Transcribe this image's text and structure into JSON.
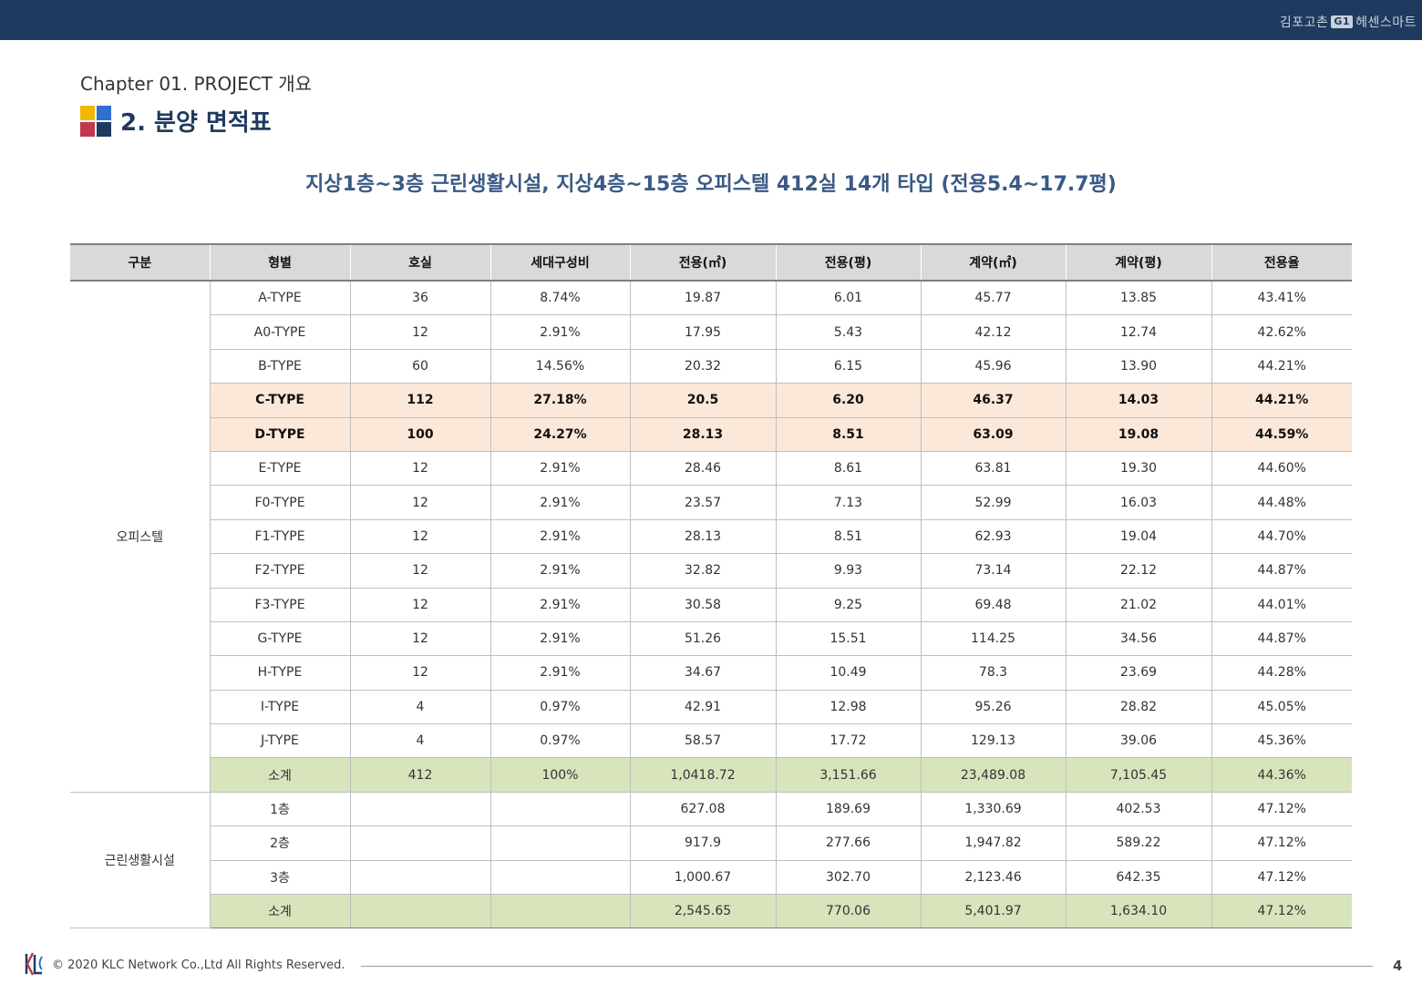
{
  "header": {
    "brand_left": "김포고촌",
    "brand_badge": "G1",
    "brand_right": "헤센스마트"
  },
  "chapter": "Chapter 01. PROJECT 개요",
  "section_title": "2. 분양 면적표",
  "subtitle": "지상1층~3층 근린생활시설, 지상4층~15층 오피스텔 412실 14개 타입 (전용5.4~17.7평)",
  "table": {
    "headers": [
      "구분",
      "형별",
      "호실",
      "세대구성비",
      "전용(㎡)",
      "전용(평)",
      "계약(㎡)",
      "계약(평)",
      "전용율"
    ],
    "groups": [
      {
        "name": "오피스텔",
        "rows": [
          [
            "A-TYPE",
            "36",
            "8.74%",
            "19.87",
            "6.01",
            "45.77",
            "13.85",
            "43.41%"
          ],
          [
            "A0-TYPE",
            "12",
            "2.91%",
            "17.95",
            "5.43",
            "42.12",
            "12.74",
            "42.62%"
          ],
          [
            "B-TYPE",
            "60",
            "14.56%",
            "20.32",
            "6.15",
            "45.96",
            "13.90",
            "44.21%"
          ],
          [
            "C-TYPE",
            "112",
            "27.18%",
            "20.5",
            "6.20",
            "46.37",
            "14.03",
            "44.21%"
          ],
          [
            "D-TYPE",
            "100",
            "24.27%",
            "28.13",
            "8.51",
            "63.09",
            "19.08",
            "44.59%"
          ],
          [
            "E-TYPE",
            "12",
            "2.91%",
            "28.46",
            "8.61",
            "63.81",
            "19.30",
            "44.60%"
          ],
          [
            "F0-TYPE",
            "12",
            "2.91%",
            "23.57",
            "7.13",
            "52.99",
            "16.03",
            "44.48%"
          ],
          [
            "F1-TYPE",
            "12",
            "2.91%",
            "28.13",
            "8.51",
            "62.93",
            "19.04",
            "44.70%"
          ],
          [
            "F2-TYPE",
            "12",
            "2.91%",
            "32.82",
            "9.93",
            "73.14",
            "22.12",
            "44.87%"
          ],
          [
            "F3-TYPE",
            "12",
            "2.91%",
            "30.58",
            "9.25",
            "69.48",
            "21.02",
            "44.01%"
          ],
          [
            "G-TYPE",
            "12",
            "2.91%",
            "51.26",
            "15.51",
            "114.25",
            "34.56",
            "44.87%"
          ],
          [
            "H-TYPE",
            "12",
            "2.91%",
            "34.67",
            "10.49",
            "78.3",
            "23.69",
            "44.28%"
          ],
          [
            "I-TYPE",
            "4",
            "0.97%",
            "42.91",
            "12.98",
            "95.26",
            "28.82",
            "45.05%"
          ],
          [
            "J-TYPE",
            "4",
            "0.97%",
            "58.57",
            "17.72",
            "129.13",
            "39.06",
            "45.36%"
          ],
          [
            "소계",
            "412",
            "100%",
            "1,0418.72",
            "3,151.66",
            "23,489.08",
            "7,105.45",
            "44.36%"
          ]
        ],
        "highlight_rows": [
          3,
          4
        ],
        "subtotal_rows": [
          14
        ]
      },
      {
        "name": "근린생활시설",
        "rows": [
          [
            "1층",
            "",
            "",
            "627.08",
            "189.69",
            "1,330.69",
            "402.53",
            "47.12%"
          ],
          [
            "2층",
            "",
            "",
            "917.9",
            "277.66",
            "1,947.82",
            "589.22",
            "47.12%"
          ],
          [
            "3층",
            "",
            "",
            "1,000.67",
            "302.70",
            "2,123.46",
            "642.35",
            "47.12%"
          ],
          [
            "소계",
            "",
            "",
            "2,545.65",
            "770.06",
            "5,401.97",
            "1,634.10",
            "47.12%"
          ]
        ],
        "highlight_rows": [],
        "subtotal_rows": [
          3
        ]
      }
    ]
  },
  "footer": {
    "copyright": "© 2020 KLC Network Co.,Ltd   All Rights Reserved.",
    "page_number": "4"
  },
  "colors": {
    "navy": "#1f3a5f",
    "highlight": "#fbe8d8",
    "subtotal": "#d8e4bc",
    "header_bg": "#d9d9d9"
  }
}
